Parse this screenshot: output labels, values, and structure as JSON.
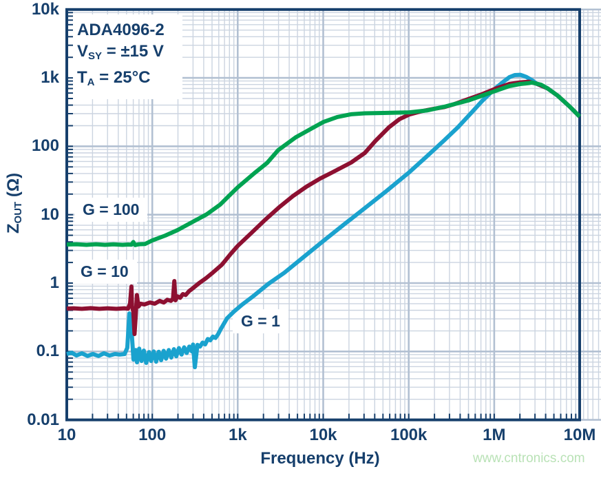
{
  "colors": {
    "navy": "#163f6c",
    "grid_minor": "#cbd4e0",
    "grid_major": "#b2c0d2",
    "green": "#00a351",
    "maroon": "#8d1031",
    "cyan": "#1aa2ce",
    "watermark_green": "#b9e2b6",
    "background": "#ffffff"
  },
  "annotation": {
    "line1": "ADA4096-2",
    "line2_main": "V",
    "line2_sub": "SY",
    "line2_rest": " = ±15 V",
    "line3_main": "T",
    "line3_sub": "A",
    "line3_rest": " = 25°C"
  },
  "watermark": "www.cntronics.com",
  "chart_data": {
    "type": "line",
    "title": "",
    "xlabel": "Frequency (Hz)",
    "ylabel": "ZOUT (Ω)",
    "ylabel_parts": {
      "main": "Z",
      "sub": "OUT",
      "rest": " (Ω)"
    },
    "x_scale": "log",
    "y_scale": "log",
    "xlim": [
      10,
      10000000
    ],
    "ylim": [
      0.01,
      10000
    ],
    "x_ticks": [
      "10",
      "100",
      "1k",
      "10k",
      "100k",
      "1M",
      "10M"
    ],
    "x_tick_values": [
      10,
      100,
      1000,
      10000,
      100000,
      1000000,
      10000000
    ],
    "y_ticks": [
      "10k",
      "1k",
      "100",
      "10",
      "1",
      "0.1",
      "0.01"
    ],
    "y_tick_values": [
      10000,
      1000,
      100,
      10,
      1,
      0.1,
      0.01
    ],
    "grid": "log minor + major, both axes",
    "legend_position": "inline curve labels",
    "series": [
      {
        "name": "G = 1",
        "color": "#1aa2ce",
        "points": [
          [
            10,
            0.0917
          ],
          [
            11.4,
            0.096
          ],
          [
            13,
            0.0875
          ],
          [
            15,
            0.094
          ],
          [
            17.5,
            0.086
          ],
          [
            20.2,
            0.0917
          ],
          [
            23.5,
            0.086
          ],
          [
            27.2,
            0.094
          ],
          [
            31.6,
            0.0875
          ],
          [
            36.6,
            0.0917
          ],
          [
            41.7,
            0.09
          ],
          [
            47.5,
            0.0917
          ],
          [
            51,
            0.113
          ],
          [
            54,
            0.36
          ],
          [
            56,
            0.266
          ],
          [
            58,
            0.16
          ],
          [
            60.3,
            0.076
          ],
          [
            64,
            0.105
          ],
          [
            66.3,
            0.0695
          ],
          [
            70.3,
            0.11
          ],
          [
            74.9,
            0.0726
          ],
          [
            79.6,
            0.103
          ],
          [
            85,
            0.068
          ],
          [
            91.7,
            0.098
          ],
          [
            97,
            0.0726
          ],
          [
            104,
            0.1
          ],
          [
            111,
            0.071
          ],
          [
            119,
            0.099
          ],
          [
            127,
            0.0745
          ],
          [
            136,
            0.102
          ],
          [
            145,
            0.0785
          ],
          [
            156,
            0.105
          ],
          [
            167,
            0.0815
          ],
          [
            179,
            0.108
          ],
          [
            191,
            0.085
          ],
          [
            205,
            0.112
          ],
          [
            220,
            0.09
          ],
          [
            236,
            0.115
          ],
          [
            253,
            0.095
          ],
          [
            271,
            0.118
          ],
          [
            291,
            0.1
          ],
          [
            300,
            0.126
          ],
          [
            315,
            0.059
          ],
          [
            338,
            0.125
          ],
          [
            362,
            0.118
          ],
          [
            388,
            0.135
          ],
          [
            416,
            0.127
          ],
          [
            446,
            0.152
          ],
          [
            478,
            0.146
          ],
          [
            512,
            0.165
          ],
          [
            549,
            0.158
          ],
          [
            588,
            0.178
          ],
          [
            630,
            0.21
          ],
          [
            750,
            0.306
          ],
          [
            905,
            0.385
          ],
          [
            1130,
            0.486
          ],
          [
            1520,
            0.644
          ],
          [
            2290,
            0.977
          ],
          [
            3510,
            1.42
          ],
          [
            5790,
            2.36
          ],
          [
            10000,
            4.11
          ],
          [
            17500,
            7.2
          ],
          [
            30700,
            12.5
          ],
          [
            53900,
            21.8
          ],
          [
            102000,
            41.9
          ],
          [
            163000,
            71.3
          ],
          [
            258000,
            121
          ],
          [
            375000,
            189
          ],
          [
            546000,
            313
          ],
          [
            716000,
            453
          ],
          [
            898000,
            597
          ],
          [
            1080000,
            738
          ],
          [
            1300000,
            890
          ],
          [
            1500000,
            1020
          ],
          [
            1740000,
            1100
          ],
          [
            2020000,
            1110
          ],
          [
            2350000,
            1040
          ],
          [
            2750000,
            930
          ],
          [
            3180000,
            814
          ],
          [
            4200000,
            704
          ],
          [
            5540000,
            549
          ],
          [
            7500000,
            389
          ],
          [
            10000000,
            272
          ]
        ]
      },
      {
        "name": "G = 10",
        "color": "#8d1031",
        "points": [
          [
            10,
            0.424
          ],
          [
            12,
            0.428
          ],
          [
            15,
            0.42
          ],
          [
            19,
            0.43
          ],
          [
            24,
            0.42
          ],
          [
            30,
            0.428
          ],
          [
            38,
            0.42
          ],
          [
            47,
            0.428
          ],
          [
            52,
            0.422
          ],
          [
            55,
            0.5
          ],
          [
            57,
            0.89
          ],
          [
            58,
            0.455
          ],
          [
            60,
            0.386
          ],
          [
            62,
            0.18
          ],
          [
            64,
            0.32
          ],
          [
            66,
            0.67
          ],
          [
            69,
            0.455
          ],
          [
            73,
            0.5
          ],
          [
            81,
            0.487
          ],
          [
            94,
            0.52
          ],
          [
            107,
            0.5
          ],
          [
            122,
            0.55
          ],
          [
            136,
            0.52
          ],
          [
            150,
            0.57
          ],
          [
            165,
            0.55
          ],
          [
            175,
            0.59
          ],
          [
            181,
            1.07
          ],
          [
            187,
            0.56
          ],
          [
            197,
            0.64
          ],
          [
            212,
            0.61
          ],
          [
            228,
            0.69
          ],
          [
            246,
            0.67
          ],
          [
            269,
            0.76
          ],
          [
            295,
            0.83
          ],
          [
            354,
            1.0
          ],
          [
            425,
            1.18
          ],
          [
            510,
            1.42
          ],
          [
            645,
            1.83
          ],
          [
            676,
            1.96
          ],
          [
            823,
            2.65
          ],
          [
            1000,
            3.5
          ],
          [
            1450,
            5.44
          ],
          [
            2100,
            8.45
          ],
          [
            3040,
            12.8
          ],
          [
            4400,
            18.6
          ],
          [
            6370,
            25.7
          ],
          [
            9220,
            33.8
          ],
          [
            12900,
            41.8
          ],
          [
            21200,
            57.8
          ],
          [
            30700,
            80
          ],
          [
            40600,
            119
          ],
          [
            58600,
            189
          ],
          [
            77700,
            249
          ],
          [
            102000,
            292
          ],
          [
            140000,
            325
          ],
          [
            195000,
            352
          ],
          [
            258000,
            373
          ],
          [
            341000,
            413
          ],
          [
            495000,
            488
          ],
          [
            716000,
            576
          ],
          [
            1030000,
            694
          ],
          [
            1500000,
            814
          ],
          [
            2000000,
            861
          ],
          [
            2550000,
            881
          ],
          [
            3180000,
            820
          ],
          [
            4200000,
            704
          ],
          [
            5540000,
            549
          ],
          [
            7500000,
            389
          ],
          [
            10000000,
            272
          ]
        ]
      },
      {
        "name": "G = 100",
        "color": "#00a351",
        "points": [
          [
            10,
            3.66
          ],
          [
            13,
            3.7
          ],
          [
            17,
            3.62
          ],
          [
            22,
            3.7
          ],
          [
            28,
            3.62
          ],
          [
            35,
            3.68
          ],
          [
            45,
            3.62
          ],
          [
            52,
            3.66
          ],
          [
            57,
            3.64
          ],
          [
            60,
            3.98
          ],
          [
            63,
            3.6
          ],
          [
            70,
            3.7
          ],
          [
            82,
            3.72
          ],
          [
            100,
            4.2
          ],
          [
            142,
            4.95
          ],
          [
            198,
            5.96
          ],
          [
            298,
            7.88
          ],
          [
            431,
            10.1
          ],
          [
            625,
            14.1
          ],
          [
            782,
            18.6
          ],
          [
            1000,
            25.1
          ],
          [
            1580,
            40.9
          ],
          [
            2200,
            57
          ],
          [
            2970,
            87.7
          ],
          [
            4810,
            136
          ],
          [
            6960,
            176
          ],
          [
            10000,
            226
          ],
          [
            14600,
            268
          ],
          [
            21200,
            294
          ],
          [
            30700,
            304
          ],
          [
            50600,
            307
          ],
          [
            102000,
            314
          ],
          [
            163000,
            334
          ],
          [
            258000,
            378
          ],
          [
            341000,
            413
          ],
          [
            495000,
            466
          ],
          [
            716000,
            549
          ],
          [
            1010000,
            639
          ],
          [
            1500000,
            758
          ],
          [
            2000000,
            814
          ],
          [
            2550000,
            839
          ],
          [
            2750000,
            856
          ],
          [
            3520000,
            797
          ],
          [
            4200000,
            704
          ],
          [
            5540000,
            549
          ],
          [
            7500000,
            389
          ],
          [
            10000000,
            272
          ]
        ]
      }
    ],
    "curve_labels": [
      "G = 100",
      "G = 10",
      "G = 1"
    ],
    "annotations": [
      "ADA4096-2",
      "VSY = ±15 V",
      "TA = 25°C"
    ]
  }
}
